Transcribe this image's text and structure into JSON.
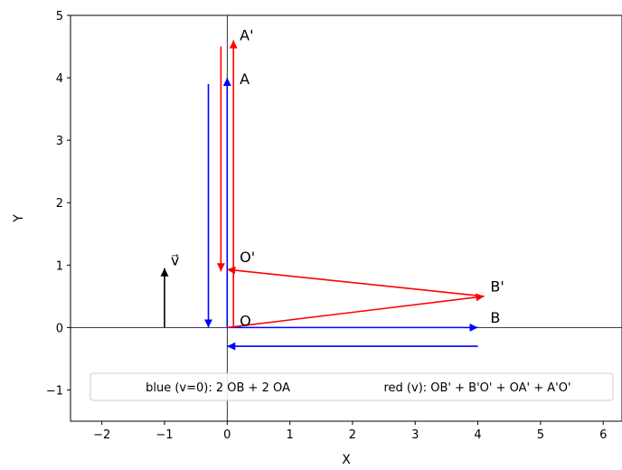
{
  "chart_data": {
    "type": "vector-diagram",
    "xlabel": "X",
    "ylabel": "Y",
    "xlim": [
      -2.5,
      6.3
    ],
    "ylim": [
      -1.5,
      5
    ],
    "xticks": [
      -2,
      -1,
      0,
      1,
      2,
      3,
      4,
      5,
      6
    ],
    "yticks": [
      -1,
      0,
      1,
      2,
      3,
      4,
      5
    ],
    "xtick_labels": [
      "−2",
      "−1",
      "0",
      "1",
      "2",
      "3",
      "4",
      "5",
      "6"
    ],
    "ytick_labels": [
      "−1",
      "0",
      "1",
      "2",
      "3",
      "4",
      "5"
    ],
    "grid": false,
    "reference_lines": [
      {
        "axis": "x",
        "value": 0
      },
      {
        "axis": "y",
        "value": 0
      }
    ],
    "colors": {
      "blue": "#0000ff",
      "red": "#ff0000",
      "black": "#000000"
    },
    "series": [
      {
        "name": "blue (v=0): 2 OB + 2 OA",
        "color": "#0000ff",
        "vectors": [
          {
            "from": [
              0,
              0
            ],
            "to": [
              4,
              0
            ]
          },
          {
            "from": [
              4,
              -0.3
            ],
            "to": [
              0,
              -0.3
            ]
          },
          {
            "from": [
              0,
              0
            ],
            "to": [
              0,
              4
            ]
          },
          {
            "from": [
              -0.3,
              3.9
            ],
            "to": [
              -0.3,
              0
            ]
          }
        ]
      },
      {
        "name": "red (v): OB' + B'O' + OA' + A'O'",
        "color": "#ff0000",
        "vectors": [
          {
            "from": [
              0,
              0
            ],
            "to": [
              4.1,
              0.5
            ]
          },
          {
            "from": [
              4.1,
              0.5
            ],
            "to": [
              0,
              0.93
            ]
          },
          {
            "from": [
              0.1,
              0
            ],
            "to": [
              0.1,
              4.6
            ]
          },
          {
            "from": [
              -0.1,
              4.5
            ],
            "to": [
              -0.1,
              0.9
            ]
          }
        ]
      },
      {
        "name": "v",
        "color": "#000000",
        "vectors": [
          {
            "from": [
              -1,
              0
            ],
            "to": [
              -1,
              0.95
            ]
          }
        ]
      }
    ],
    "annotations": [
      {
        "text": "A'",
        "x": 0.2,
        "y": 4.6
      },
      {
        "text": "A",
        "x": 0.2,
        "y": 3.9
      },
      {
        "text": "O'",
        "x": 0.2,
        "y": 1.05
      },
      {
        "text": "B'",
        "x": 4.2,
        "y": 0.58
      },
      {
        "text": "B",
        "x": 4.2,
        "y": 0.08
      },
      {
        "text": "O",
        "x": 0.2,
        "y": 0.03
      },
      {
        "text": "v⃗",
        "x": -0.9,
        "y": 1.0
      }
    ],
    "legend": {
      "placement": "lower-center",
      "ncol": 2,
      "entries": [
        "blue (v=0): 2 OB + 2 OA",
        "red (v): OB' + B'O' + OA' + A'O'"
      ]
    }
  }
}
